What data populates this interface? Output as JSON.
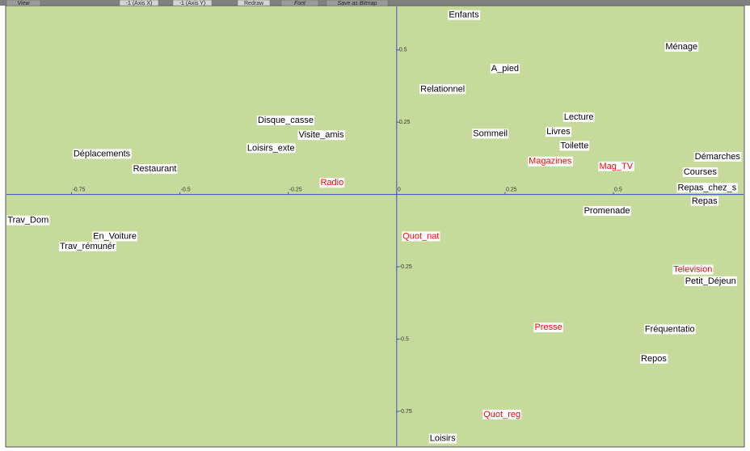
{
  "toolbar": [
    "View",
    "-1 (Axis X)",
    "-1 (Axis Y)",
    "Redraw",
    "Font",
    "Save as Bitmap"
  ],
  "chart_data": {
    "type": "scatter",
    "xlim": [
      -0.9,
      0.8
    ],
    "ylim": [
      -0.87,
      0.65
    ],
    "xticks": [
      -0.75,
      -0.5,
      -0.25,
      0,
      0.25,
      0.5
    ],
    "yticks": [
      0.5,
      0.25,
      -0.25,
      -0.5,
      -0.75
    ],
    "points": [
      {
        "label": "Enfants",
        "x": 0.155,
        "y": 0.62,
        "color": "#000000"
      },
      {
        "label": "Ménage",
        "x": 0.657,
        "y": 0.51,
        "color": "#000000"
      },
      {
        "label": "A_pied",
        "x": 0.25,
        "y": 0.435,
        "color": "#000000"
      },
      {
        "label": "Relationnel",
        "x": 0.106,
        "y": 0.364,
        "color": "#000000"
      },
      {
        "label": "Lecture",
        "x": 0.42,
        "y": 0.267,
        "color": "#000000"
      },
      {
        "label": "Livres",
        "x": 0.373,
        "y": 0.216,
        "color": "#000000"
      },
      {
        "label": "Sommeil",
        "x": 0.216,
        "y": 0.21,
        "color": "#000000"
      },
      {
        "label": "Toilette",
        "x": 0.41,
        "y": 0.168,
        "color": "#000000"
      },
      {
        "label": "Disque_casse",
        "x": -0.256,
        "y": 0.256,
        "color": "#000000"
      },
      {
        "label": "Visite_amis",
        "x": -0.174,
        "y": 0.205,
        "color": "#000000"
      },
      {
        "label": "Loisirs_exte",
        "x": -0.29,
        "y": 0.16,
        "color": "#000000"
      },
      {
        "label": "Déplacements",
        "x": -0.68,
        "y": 0.14,
        "color": "#000000"
      },
      {
        "label": "Restaurant",
        "x": -0.558,
        "y": 0.088,
        "color": "#000000"
      },
      {
        "label": "Radio",
        "x": -0.149,
        "y": 0.04,
        "color": "#ff0000"
      },
      {
        "label": "Magazines",
        "x": 0.354,
        "y": 0.114,
        "color": "#ff0000"
      },
      {
        "label": "Mag_TV",
        "x": 0.506,
        "y": 0.097,
        "color": "#ff0000"
      },
      {
        "label": "Démarches",
        "x": 0.74,
        "y": 0.13,
        "color": "#000000"
      },
      {
        "label": "Courses",
        "x": 0.7,
        "y": 0.077,
        "color": "#000000"
      },
      {
        "label": "Repas_chez_s",
        "x": 0.716,
        "y": 0.023,
        "color": "#000000"
      },
      {
        "label": "Repas",
        "x": 0.71,
        "y": -0.023,
        "color": "#000000"
      },
      {
        "label": "Promenade",
        "x": 0.485,
        "y": -0.057,
        "color": "#000000"
      },
      {
        "label": "Trav_Dom",
        "x": -0.85,
        "y": -0.09,
        "color": "#000000"
      },
      {
        "label": "En_Voiture",
        "x": -0.65,
        "y": -0.145,
        "color": "#000000"
      },
      {
        "label": "Trav_rémunér",
        "x": -0.713,
        "y": -0.18,
        "color": "#000000"
      },
      {
        "label": "Quot_nat",
        "x": 0.056,
        "y": -0.145,
        "color": "#ff0000"
      },
      {
        "label": "Television",
        "x": 0.683,
        "y": -0.26,
        "color": "#ff0000"
      },
      {
        "label": "Petit_Déjeun",
        "x": 0.724,
        "y": -0.3,
        "color": "#000000"
      },
      {
        "label": "Presse",
        "x": 0.35,
        "y": -0.46,
        "color": "#ff0000"
      },
      {
        "label": "Fréquentatio",
        "x": 0.63,
        "y": -0.466,
        "color": "#000000"
      },
      {
        "label": "Repos",
        "x": 0.593,
        "y": -0.568,
        "color": "#000000"
      },
      {
        "label": "Quot_reg",
        "x": 0.243,
        "y": -0.761,
        "color": "#ff0000"
      },
      {
        "label": "Loisirs",
        "x": 0.106,
        "y": -0.844,
        "color": "#000000"
      }
    ]
  }
}
